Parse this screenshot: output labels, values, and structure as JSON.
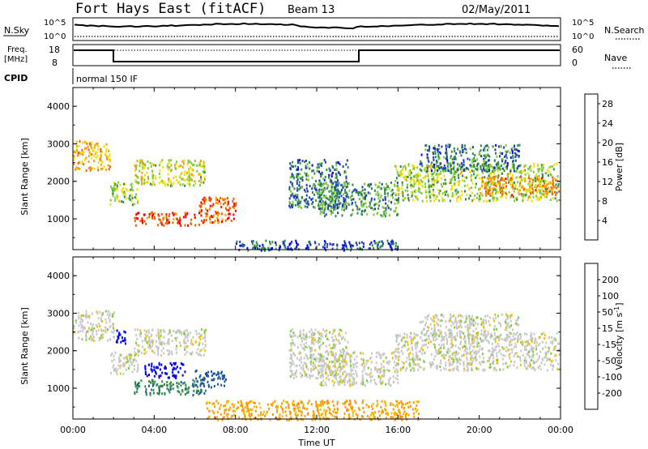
{
  "header": {
    "station": "Fort Hays East (fitACF)",
    "beam": "Beam 13",
    "date": "02/May/2011"
  },
  "noise_panel": {
    "left_label": "N.Sky",
    "right_label": "N.Search",
    "left_ticks": [
      "10^5",
      "10^0"
    ],
    "right_ticks": [
      "10^5",
      "10^0"
    ]
  },
  "freq_panel": {
    "left_label_line1": "Freq.",
    "left_label_line2": "[MHz]",
    "left_ticks": [
      "18",
      "8"
    ],
    "right_ticks": [
      "60",
      "0"
    ],
    "right_label": "Nave"
  },
  "cpid_panel": {
    "label": "CPID",
    "value": "normal 150 IF"
  },
  "x_axis": {
    "label": "Time UT",
    "ticks": [
      "00:00",
      "04:00",
      "08:00",
      "12:00",
      "16:00",
      "20:00",
      "00:00"
    ],
    "hours": [
      0,
      4,
      8,
      12,
      16,
      20,
      24
    ]
  },
  "colors": {
    "power": [
      "#0000ff",
      "#1f3fb0",
      "#2e8a4a",
      "#7ecb3b",
      "#f0e000",
      "#f5a000",
      "#f06000",
      "#ff0000"
    ],
    "velocity": [
      "#ff0000",
      "#ff4000",
      "#ff9900",
      "#f0c000",
      "#c8c8c8",
      "#7ecb3b",
      "#2e8a4a",
      "#1a55a0",
      "#0000ff"
    ]
  },
  "chart_data": [
    {
      "type": "heatmap",
      "title": "",
      "xlabel": "Time UT",
      "ylabel": "Slant Range [km]",
      "xlim": [
        0,
        24
      ],
      "ylim": [
        180,
        4500
      ],
      "yticks": [
        1000,
        2000,
        3000,
        4000
      ],
      "ytick_labels": [
        "1000",
        "2000",
        "3000",
        "4000"
      ],
      "colorbar_label": "Power [dB]",
      "colorbar_ticks": [
        "4",
        "8",
        "12",
        "16",
        "20",
        "24",
        "28"
      ],
      "colorbar_range": [
        0,
        30
      ],
      "echo_regions": [
        {
          "t": [
            0.0,
            1.8
          ],
          "r": [
            2300,
            3100
          ],
          "value": 20
        },
        {
          "t": [
            1.8,
            3.2
          ],
          "r": [
            1400,
            2000
          ],
          "value": 14
        },
        {
          "t": [
            3.0,
            6.5
          ],
          "r": [
            1900,
            2600
          ],
          "value": 16
        },
        {
          "t": [
            3.0,
            6.2
          ],
          "r": [
            850,
            1200
          ],
          "value": 26
        },
        {
          "t": [
            6.2,
            8.0
          ],
          "r": [
            900,
            1600
          ],
          "value": 24
        },
        {
          "t": [
            10.6,
            13.5
          ],
          "r": [
            1300,
            2600
          ],
          "value": 8
        },
        {
          "t": [
            12.0,
            16.0
          ],
          "r": [
            1100,
            2000
          ],
          "value": 10
        },
        {
          "t": [
            15.8,
            23.9
          ],
          "r": [
            1500,
            2500
          ],
          "value": 14
        },
        {
          "t": [
            20.0,
            23.9
          ],
          "r": [
            1650,
            2150
          ],
          "value": 22
        },
        {
          "t": [
            17.0,
            22.0
          ],
          "r": [
            2300,
            3000
          ],
          "value": 8
        },
        {
          "t": [
            8.0,
            16.0
          ],
          "r": [
            180,
            450
          ],
          "value": 6
        }
      ]
    },
    {
      "type": "heatmap",
      "title": "",
      "xlabel": "Time UT",
      "ylabel": "Slant Range [km]",
      "xlim": [
        0,
        24
      ],
      "ylim": [
        180,
        4500
      ],
      "yticks": [
        1000,
        2000,
        3000,
        4000
      ],
      "ytick_labels": [
        "1000",
        "2000",
        "3000",
        "4000"
      ],
      "colorbar_label": "Velocity [m s^-1]",
      "colorbar_ticks": [
        "200",
        "100",
        "50",
        "15",
        "-15",
        "-50",
        "-100",
        "-200"
      ],
      "colorbar_range": [
        -250,
        250
      ],
      "echo_regions": [
        {
          "t": [
            0.0,
            2.0
          ],
          "r": [
            2300,
            3100
          ],
          "value": 0
        },
        {
          "t": [
            1.8,
            3.2
          ],
          "r": [
            1400,
            2000
          ],
          "value": 0
        },
        {
          "t": [
            2.0,
            2.6
          ],
          "r": [
            2200,
            2600
          ],
          "value": 220
        },
        {
          "t": [
            3.0,
            6.5
          ],
          "r": [
            1900,
            2600
          ],
          "value": 0
        },
        {
          "t": [
            3.0,
            6.5
          ],
          "r": [
            850,
            1250
          ],
          "value": 90
        },
        {
          "t": [
            3.5,
            5.5
          ],
          "r": [
            1300,
            1700
          ],
          "value": 230
        },
        {
          "t": [
            6.0,
            7.5
          ],
          "r": [
            1050,
            1500
          ],
          "value": 150
        },
        {
          "t": [
            10.6,
            13.5
          ],
          "r": [
            1300,
            2600
          ],
          "value": 0
        },
        {
          "t": [
            12.0,
            16.0
          ],
          "r": [
            1100,
            2000
          ],
          "value": 0
        },
        {
          "t": [
            15.8,
            23.9
          ],
          "r": [
            1500,
            2500
          ],
          "value": 0
        },
        {
          "t": [
            17.0,
            22.0
          ],
          "r": [
            2300,
            3000
          ],
          "value": 0
        },
        {
          "t": [
            6.5,
            17.0
          ],
          "r": [
            180,
            700
          ],
          "value": -60
        }
      ]
    }
  ]
}
